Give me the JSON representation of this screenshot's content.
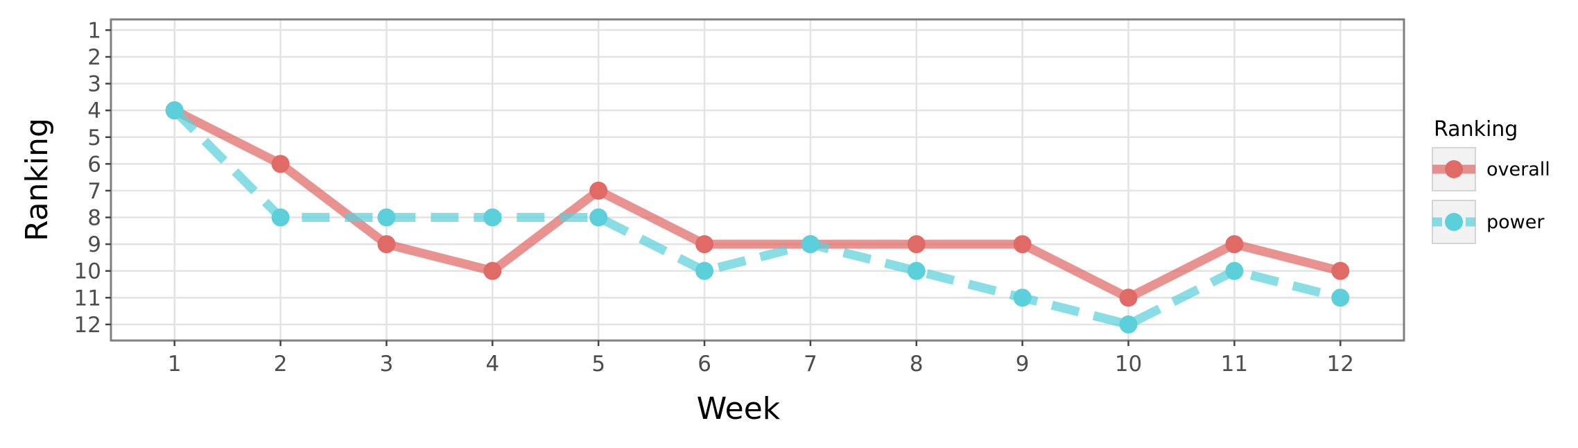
{
  "chart_data": {
    "type": "line",
    "xlabel": "Week",
    "ylabel": "Ranking",
    "x": [
      1,
      2,
      3,
      4,
      5,
      6,
      7,
      8,
      9,
      10,
      11,
      12
    ],
    "xticks": [
      "1",
      "2",
      "3",
      "4",
      "5",
      "6",
      "7",
      "8",
      "9",
      "10",
      "11",
      "12"
    ],
    "yticks": [
      "1",
      "2",
      "3",
      "4",
      "5",
      "6",
      "7",
      "8",
      "9",
      "10",
      "11",
      "12"
    ],
    "xlim": [
      0.4,
      12.6
    ],
    "ylim": [
      12.6,
      0.6
    ],
    "y_reversed": true,
    "grid": true,
    "legend": {
      "title": "Ranking",
      "placement": "right"
    },
    "series": [
      {
        "name": "overall",
        "color": "#e06a66",
        "line_style": "solid",
        "values": [
          4,
          6,
          9,
          10,
          7,
          9,
          9,
          9,
          9,
          11,
          9,
          10
        ]
      },
      {
        "name": "power",
        "color": "#5bd0db",
        "line_style": "dashed",
        "values": [
          4,
          8,
          8,
          8,
          8,
          10,
          9,
          10,
          11,
          12,
          10,
          11
        ]
      }
    ]
  }
}
